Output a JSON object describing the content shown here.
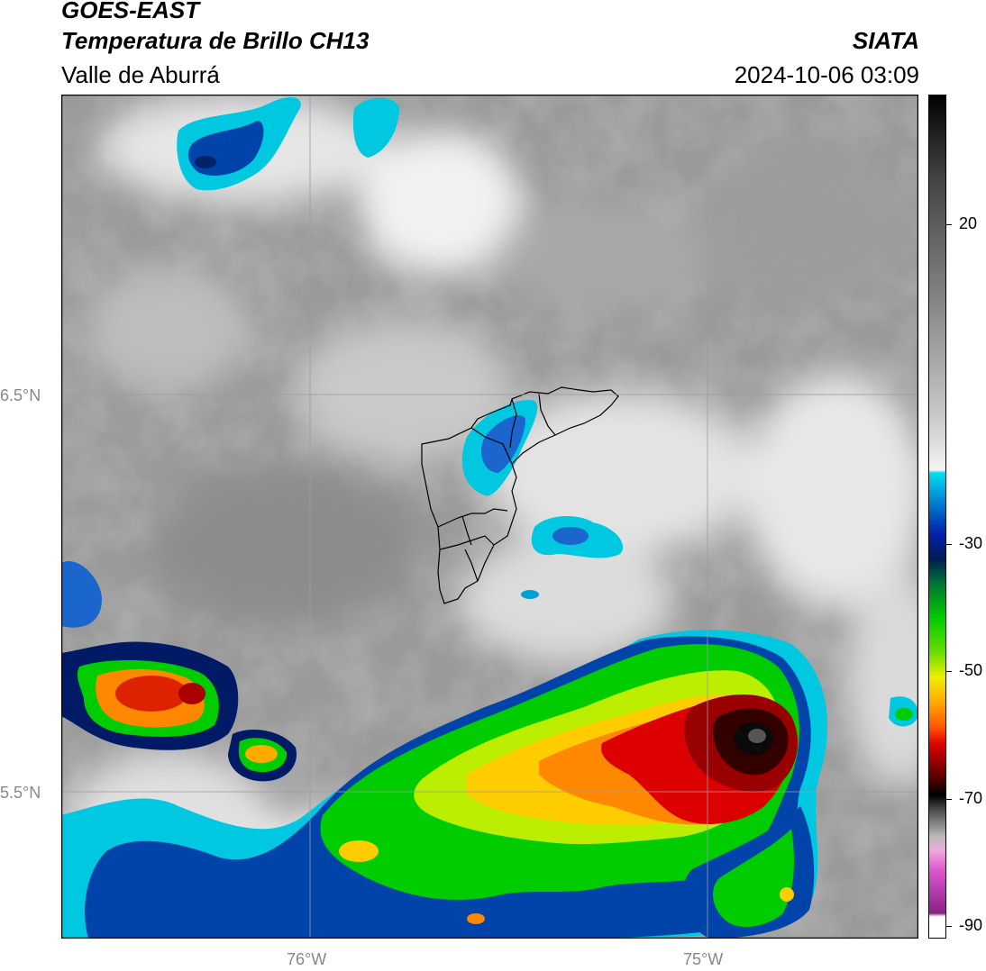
{
  "header": {
    "satellite": "GOES-EAST",
    "product": "Temperatura de Brillo CH13",
    "region": "Valle de Aburrá",
    "brand": "SIATA",
    "datetime": "2024-10-06 03:09"
  },
  "map": {
    "lat_labels": [
      "6.5°N",
      "5.5°N"
    ],
    "lon_labels": [
      "76°W",
      "75°W"
    ],
    "overlay": "Valle de Aburrá municipal boundaries"
  },
  "colorbar": {
    "ticks": [
      "20",
      "-30",
      "-50",
      "-70",
      "-90"
    ],
    "range": [
      -92,
      34
    ],
    "colors": {
      "grayscale_warm": "#8a8a8a",
      "cyan": "#00d4e8",
      "blue": "#0033aa",
      "navy": "#001a66",
      "green": "#00cc00",
      "yellow": "#f0f000",
      "orange": "#ff8800",
      "red": "#dd0000",
      "dark_red": "#660000",
      "black": "#000000",
      "magenta": "#cc55cc"
    }
  }
}
